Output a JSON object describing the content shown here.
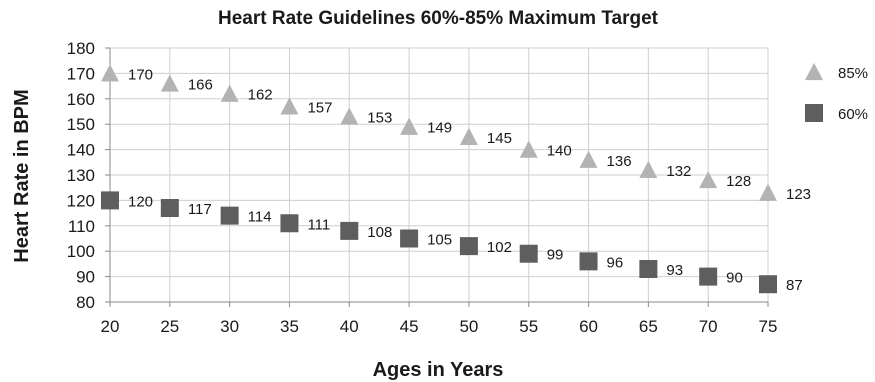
{
  "chart_data": {
    "type": "scatter",
    "title": "Heart Rate Guidelines 60%-85% Maximum Target",
    "xlabel": "Ages in Years",
    "ylabel": "Heart Rate in BPM",
    "x": [
      20,
      25,
      30,
      35,
      40,
      45,
      50,
      55,
      60,
      65,
      70,
      75
    ],
    "xlim": [
      20,
      75
    ],
    "ylim": [
      80,
      180
    ],
    "x_ticks": [
      20,
      25,
      30,
      35,
      40,
      45,
      50,
      55,
      60,
      65,
      70,
      75
    ],
    "y_ticks": [
      80,
      90,
      100,
      110,
      120,
      130,
      140,
      150,
      160,
      170,
      180
    ],
    "grid": true,
    "legend_position": "right",
    "series": [
      {
        "name": "85%",
        "marker": "triangle",
        "color": "#b3b3b3",
        "values": [
          170,
          166,
          162,
          157,
          153,
          149,
          145,
          140,
          136,
          132,
          128,
          123
        ]
      },
      {
        "name": "60%",
        "marker": "square",
        "color": "#5e5e5e",
        "values": [
          120,
          117,
          114,
          111,
          108,
          105,
          102,
          99,
          96,
          93,
          90,
          87
        ]
      }
    ]
  }
}
